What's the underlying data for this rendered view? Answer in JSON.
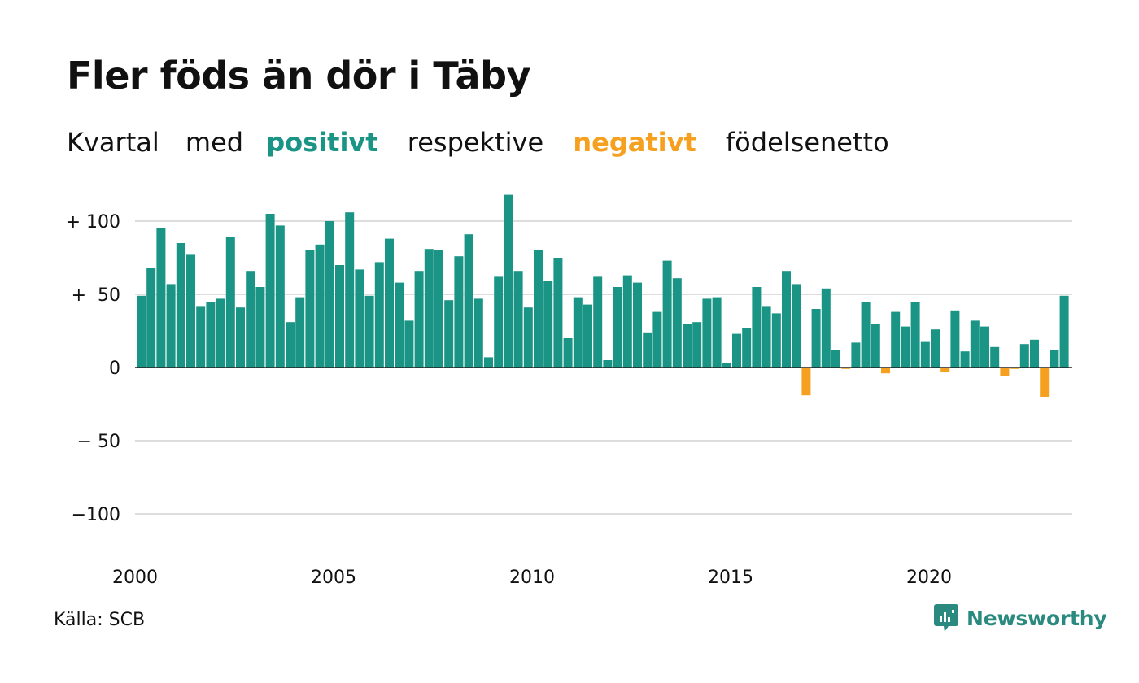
{
  "header": {
    "title": "Fler föds än dör i Täby",
    "subtitle": {
      "part1": "Kvartal",
      "part2": "med",
      "positive": "positivt",
      "part3": "respektive",
      "negative": "negativt",
      "part4": "födelsenetto"
    }
  },
  "colors": {
    "positive": "#1a9485",
    "negative": "#f5a11f",
    "grid": "#dddddd",
    "zero_line": "#222222",
    "brand": "#2a8a80"
  },
  "footer": {
    "source": "Källa: SCB",
    "brand": "Newsworthy",
    "brand_icon": "newsworthy-logo-icon"
  },
  "chart_data": {
    "type": "bar",
    "title": "Fler föds än dör i Täby",
    "subtitle": "Kvartal med positivt respektive negativt födelsenetto",
    "xlabel": "",
    "ylabel": "",
    "ylim": [
      -125,
      125
    ],
    "y_ticks": [
      {
        "value": 100,
        "label": "+ 100"
      },
      {
        "value": 50,
        "label": "+  50"
      },
      {
        "value": 0,
        "label": "0"
      },
      {
        "value": -50,
        "label": "− 50"
      },
      {
        "value": -100,
        "label": "−100"
      }
    ],
    "x_ticks": [
      "2000",
      "2005",
      "2010",
      "2015",
      "2020"
    ],
    "grid": true,
    "start": "2000 Q1",
    "frequency": "quarterly",
    "values": [
      49,
      68,
      95,
      57,
      85,
      77,
      42,
      45,
      47,
      89,
      41,
      66,
      55,
      105,
      97,
      31,
      48,
      80,
      84,
      100,
      70,
      106,
      67,
      49,
      72,
      88,
      58,
      32,
      66,
      81,
      80,
      46,
      76,
      91,
      47,
      7,
      62,
      118,
      66,
      41,
      80,
      59,
      75,
      20,
      48,
      43,
      62,
      5,
      55,
      63,
      58,
      24,
      38,
      73,
      61,
      30,
      31,
      47,
      48,
      3,
      23,
      27,
      55,
      42,
      37,
      66,
      57,
      -19,
      40,
      54,
      12,
      -1,
      17,
      45,
      30,
      -4,
      38,
      28,
      45,
      18,
      26,
      -3,
      39,
      11,
      32,
      28,
      14,
      -6,
      -1,
      16,
      19,
      -20,
      12,
      49
    ]
  }
}
